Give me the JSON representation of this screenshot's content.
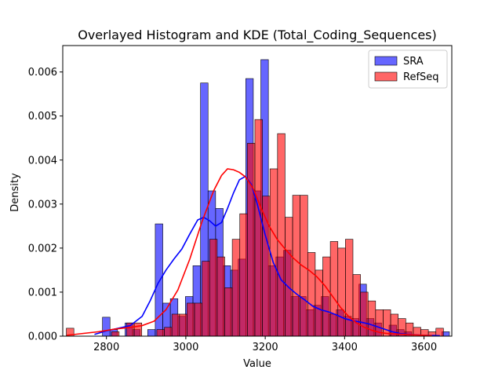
{
  "chart_data": {
    "type": "bar",
    "title": "Overlayed Histogram and KDE (Total_Coding_Sequences)",
    "xlabel": "Value",
    "ylabel": "Density",
    "xlim": [
      2690,
      3670
    ],
    "ylim": [
      0,
      0.0066
    ],
    "xticks": [
      2800,
      3000,
      3200,
      3400,
      3600
    ],
    "yticks": [
      0.0,
      0.001,
      0.002,
      0.003,
      0.004,
      0.005,
      0.006
    ],
    "ytick_labels": [
      "0.000",
      "0.001",
      "0.002",
      "0.003",
      "0.004",
      "0.005",
      "0.006"
    ],
    "legend": {
      "position": "top-right",
      "entries": [
        "SRA",
        "RefSeq"
      ]
    },
    "series": [
      {
        "name": "SRA",
        "color": "#0000ff",
        "bin_width": 19,
        "bins": [
          [
            2790,
            0.00043
          ],
          [
            2809,
            0.00015
          ],
          [
            2847,
            0.0003
          ],
          [
            2866,
            0.00015
          ],
          [
            2904,
            0.00015
          ],
          [
            2923,
            0.00255
          ],
          [
            2942,
            0.00075
          ],
          [
            2961,
            0.00085
          ],
          [
            2980,
            0.00045
          ],
          [
            2999,
            0.0009
          ],
          [
            3018,
            0.0016
          ],
          [
            3037,
            0.00575
          ],
          [
            3056,
            0.0033
          ],
          [
            3075,
            0.0029
          ],
          [
            3094,
            0.0016
          ],
          [
            3113,
            0.0015
          ],
          [
            3132,
            0.00175
          ],
          [
            3151,
            0.00585
          ],
          [
            3170,
            0.0033
          ],
          [
            3189,
            0.00628
          ],
          [
            3208,
            0.0016
          ],
          [
            3227,
            0.0018
          ],
          [
            3246,
            0.00195
          ],
          [
            3265,
            0.0009
          ],
          [
            3284,
            0.0009
          ],
          [
            3303,
            0.0006
          ],
          [
            3322,
            0.0007
          ],
          [
            3341,
            0.0009
          ],
          [
            3360,
            0.0005
          ],
          [
            3379,
            0.0006
          ],
          [
            3398,
            0.00045
          ],
          [
            3417,
            0.0004
          ],
          [
            3436,
            0.00118
          ],
          [
            3455,
            0.0004
          ],
          [
            3474,
            0.0003
          ],
          [
            3512,
            0.00025
          ],
          [
            3531,
            0.00015
          ],
          [
            3550,
            0.0001
          ],
          [
            3645,
            0.0001
          ]
        ]
      },
      {
        "name": "RefSeq",
        "color": "#ff0000",
        "bin_width": 19,
        "bins": [
          [
            2699,
            0.00018
          ],
          [
            2813,
            0.0001
          ],
          [
            2851,
            0.0003
          ],
          [
            2870,
            0.0003
          ],
          [
            2927,
            0.00015
          ],
          [
            2946,
            0.0002
          ],
          [
            2965,
            0.0005
          ],
          [
            2984,
            0.0005
          ],
          [
            3003,
            0.00075
          ],
          [
            3022,
            0.00075
          ],
          [
            3041,
            0.0017
          ],
          [
            3060,
            0.0022
          ],
          [
            3079,
            0.0018
          ],
          [
            3098,
            0.0011
          ],
          [
            3117,
            0.0022
          ],
          [
            3136,
            0.00278
          ],
          [
            3155,
            0.00438
          ],
          [
            3174,
            0.00492
          ],
          [
            3193,
            0.00318
          ],
          [
            3212,
            0.0038
          ],
          [
            3231,
            0.0046
          ],
          [
            3250,
            0.0027
          ],
          [
            3269,
            0.0032
          ],
          [
            3288,
            0.0032
          ],
          [
            3307,
            0.0019
          ],
          [
            3326,
            0.0015
          ],
          [
            3345,
            0.0018
          ],
          [
            3364,
            0.00215
          ],
          [
            3383,
            0.002
          ],
          [
            3402,
            0.0022
          ],
          [
            3421,
            0.0014
          ],
          [
            3440,
            0.001
          ],
          [
            3459,
            0.0008
          ],
          [
            3478,
            0.0006
          ],
          [
            3497,
            0.0006
          ],
          [
            3516,
            0.0005
          ],
          [
            3535,
            0.0004
          ],
          [
            3554,
            0.0003
          ],
          [
            3573,
            0.0002
          ],
          [
            3592,
            0.00015
          ],
          [
            3611,
            0.0001
          ],
          [
            3630,
            0.00018
          ]
        ]
      }
    ],
    "kde": [
      {
        "name": "SRA",
        "color": "#0000ff",
        "x": [
          2770,
          2800,
          2830,
          2860,
          2890,
          2910,
          2930,
          2950,
          2970,
          2990,
          3010,
          3030,
          3045,
          3060,
          3075,
          3090,
          3105,
          3120,
          3135,
          3150,
          3165,
          3180,
          3200,
          3220,
          3240,
          3260,
          3280,
          3300,
          3320,
          3340,
          3360,
          3380,
          3400,
          3420,
          3440,
          3460,
          3480,
          3500,
          3520,
          3540,
          3560,
          3600,
          3640
        ],
        "y": [
          4e-05,
          0.00012,
          0.00018,
          0.00024,
          0.00045,
          0.0008,
          0.0012,
          0.0015,
          0.00175,
          0.00198,
          0.00232,
          0.00264,
          0.0027,
          0.00262,
          0.0025,
          0.00258,
          0.0029,
          0.00325,
          0.00355,
          0.00363,
          0.00345,
          0.003,
          0.0023,
          0.00168,
          0.00128,
          0.0011,
          0.00095,
          0.00082,
          0.00068,
          0.0006,
          0.00055,
          0.00048,
          0.0004,
          0.00035,
          0.00032,
          0.00028,
          0.00022,
          0.00016,
          0.0001,
          6e-05,
          4e-05,
          2e-05,
          1e-05
        ]
      },
      {
        "name": "RefSeq",
        "color": "#ff0000",
        "x": [
          2700,
          2740,
          2780,
          2820,
          2860,
          2890,
          2920,
          2950,
          2980,
          3010,
          3040,
          3070,
          3090,
          3105,
          3120,
          3135,
          3150,
          3170,
          3190,
          3210,
          3230,
          3250,
          3270,
          3290,
          3310,
          3330,
          3350,
          3370,
          3390,
          3410,
          3430,
          3450,
          3470,
          3490,
          3510,
          3530,
          3550,
          3570,
          3600,
          3620
        ],
        "y": [
          2e-05,
          6e-05,
          0.0001,
          0.00016,
          0.0002,
          0.00024,
          0.00034,
          0.0006,
          0.00105,
          0.00175,
          0.00258,
          0.0033,
          0.00365,
          0.0038,
          0.00378,
          0.00372,
          0.00362,
          0.00335,
          0.0029,
          0.0025,
          0.0022,
          0.00198,
          0.00178,
          0.00162,
          0.0015,
          0.00135,
          0.00115,
          0.0009,
          0.00065,
          0.00045,
          0.0003,
          0.0002,
          0.00013,
          8e-05,
          6e-05,
          5e-05,
          4e-05,
          3e-05,
          2e-05,
          1e-05
        ]
      }
    ]
  }
}
